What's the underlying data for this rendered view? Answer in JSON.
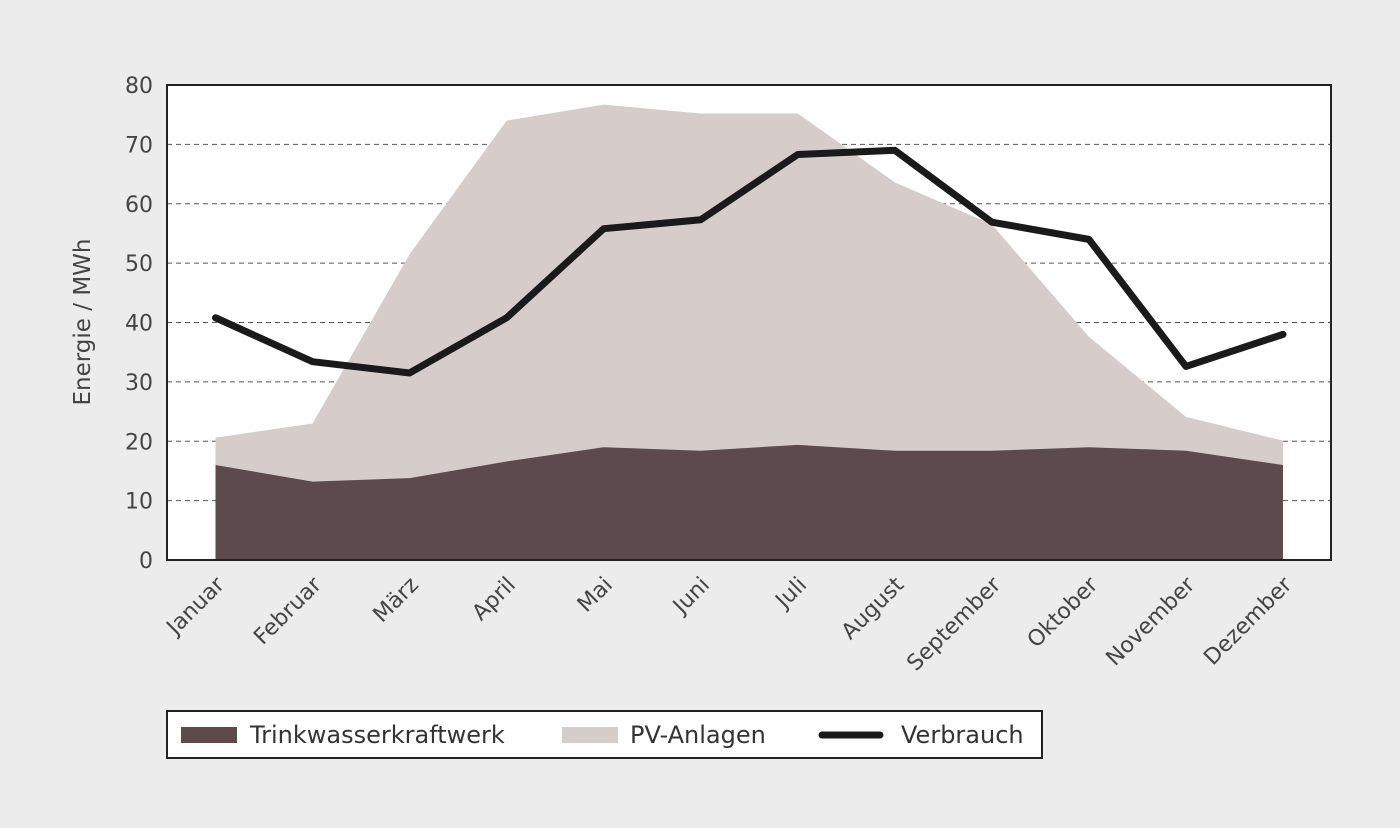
{
  "chart_data": {
    "type": "area",
    "categories": [
      "Januar",
      "Februar",
      "März",
      "April",
      "Mai",
      "Juni",
      "Juli",
      "August",
      "September",
      "Oktober",
      "November",
      "Dezember"
    ],
    "ylabel": "Energie / MWh",
    "xlabel": "",
    "ylim": [
      0,
      80
    ],
    "yticks": [
      0,
      10,
      20,
      30,
      40,
      50,
      60,
      70,
      80
    ],
    "grid": "horizontal dashed",
    "legend_position": "bottom-left",
    "series": [
      {
        "name": "Trinkwasserkraftwerk",
        "kind": "area",
        "color": "#5c4a4c",
        "values": [
          16,
          13.2,
          13.8,
          16.6,
          19,
          18.4,
          19.4,
          18.4,
          18.4,
          19,
          18.4,
          16
        ]
      },
      {
        "name": "PV-Anlagen",
        "kind": "area",
        "color": "#d6cdca",
        "values": [
          20.6,
          23,
          51.5,
          74,
          76.7,
          75.2,
          75.2,
          63.6,
          56.5,
          37.6,
          24.1,
          20.1
        ]
      },
      {
        "name": "Verbrauch",
        "kind": "line",
        "color": "#1a1a1a",
        "values": [
          40.8,
          33.4,
          31.5,
          40.8,
          55.8,
          57.3,
          68.3,
          69,
          56.9,
          54,
          32.6,
          38
        ]
      }
    ]
  }
}
